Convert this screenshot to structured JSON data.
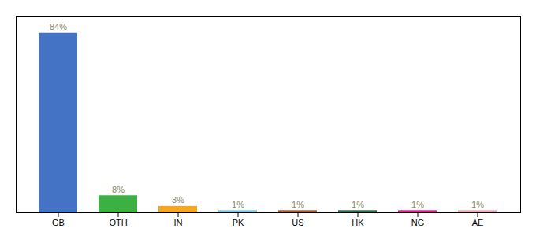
{
  "chart_data": {
    "type": "bar",
    "categories": [
      "GB",
      "OTH",
      "IN",
      "PK",
      "US",
      "HK",
      "NG",
      "AE"
    ],
    "values": [
      84,
      8,
      3,
      1,
      1,
      1,
      1,
      1
    ],
    "value_labels": [
      "84%",
      "8%",
      "3%",
      "1%",
      "1%",
      "1%",
      "1%",
      "1%"
    ],
    "colors": [
      "#4472c4",
      "#3cb043",
      "#f5a623",
      "#7ec8e3",
      "#b05a2f",
      "#2d6a4f",
      "#e91e8c",
      "#f4a7b9"
    ],
    "ylim": [
      0,
      92
    ],
    "data_labels": true,
    "tick_labels": "x",
    "grid": false
  }
}
